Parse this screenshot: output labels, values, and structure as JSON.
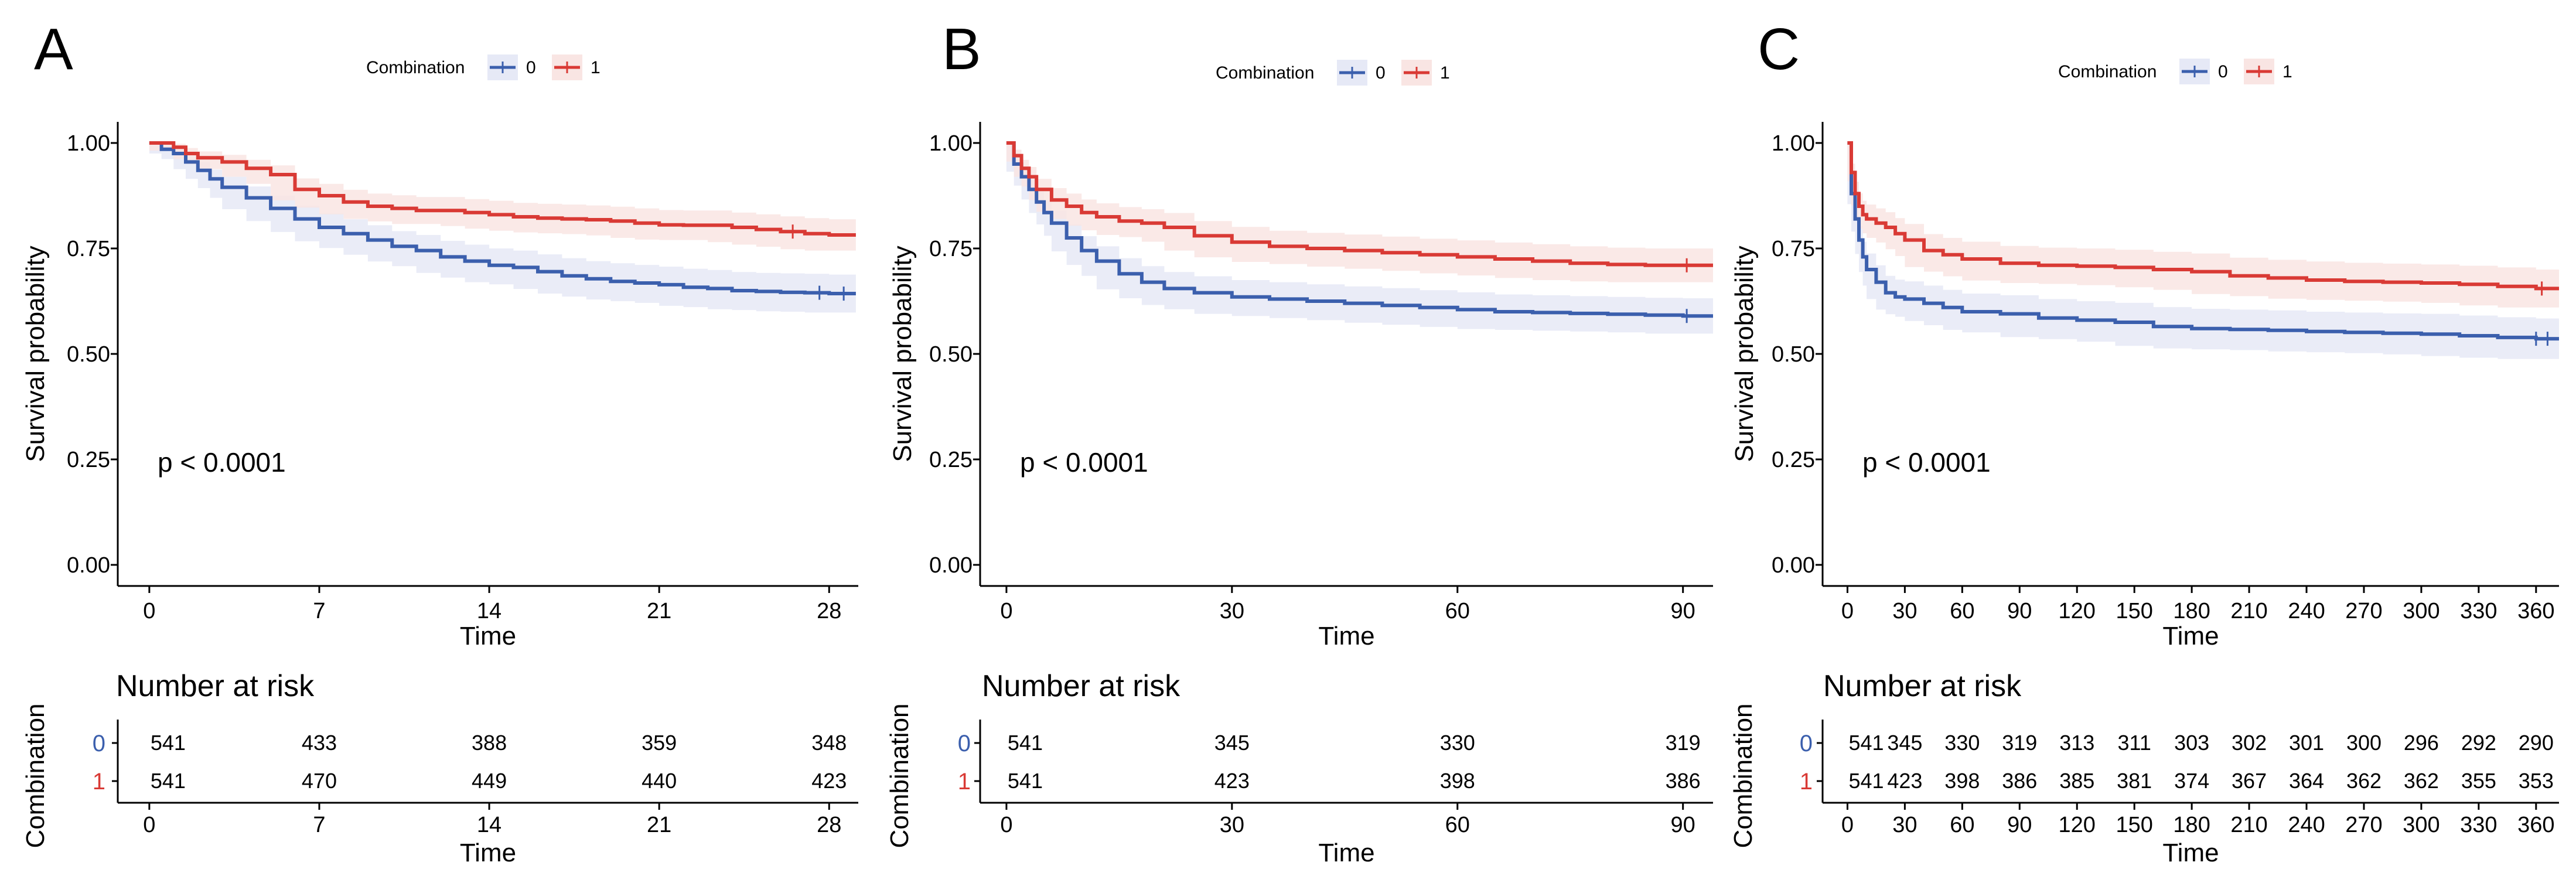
{
  "colors": {
    "group0": "#3b5fad",
    "group1": "#d93a35",
    "band0": "#e6e9f6",
    "band1": "#f9e5e3",
    "axis": "#000000"
  },
  "chart_data": [
    {
      "type": "line",
      "panel_label": "A",
      "legend_title": "Combination",
      "legend_labels": [
        "0",
        "1"
      ],
      "xlabel": "Time",
      "ylabel": "Survival probability",
      "xlim": [
        -1.3,
        29.2
      ],
      "ylim": [
        -0.05,
        1.05
      ],
      "xticks": [
        0,
        7,
        14,
        21,
        28
      ],
      "yticks": [
        0,
        0.25,
        0.5,
        0.75,
        1.0
      ],
      "ytick_labels": [
        "0.00",
        "0.25",
        "0.50",
        "0.75",
        "1.00"
      ],
      "pvalue": "p < 0.0001",
      "series": [
        {
          "name": "0",
          "x": [
            0,
            0.5,
            1,
            1.5,
            2,
            2.5,
            3,
            4,
            5,
            6,
            7,
            8,
            9,
            10,
            11,
            12,
            13,
            14,
            15,
            16,
            17,
            18,
            19,
            20,
            21,
            22,
            23,
            24,
            25,
            26,
            27,
            28,
            29.1
          ],
          "y": [
            1.0,
            0.985,
            0.975,
            0.955,
            0.935,
            0.915,
            0.895,
            0.87,
            0.845,
            0.82,
            0.8,
            0.785,
            0.77,
            0.755,
            0.745,
            0.73,
            0.72,
            0.71,
            0.705,
            0.695,
            0.685,
            0.678,
            0.672,
            0.668,
            0.664,
            0.658,
            0.655,
            0.65,
            0.648,
            0.646,
            0.645,
            0.643,
            0.643
          ],
          "lower": [
            1.0,
            0.975,
            0.962,
            0.938,
            0.915,
            0.893,
            0.87,
            0.843,
            0.815,
            0.789,
            0.767,
            0.751,
            0.735,
            0.719,
            0.708,
            0.692,
            0.681,
            0.67,
            0.665,
            0.654,
            0.643,
            0.636,
            0.629,
            0.625,
            0.621,
            0.614,
            0.611,
            0.606,
            0.604,
            0.601,
            0.6,
            0.598,
            0.598
          ],
          "upper": [
            1.0,
            0.995,
            0.988,
            0.972,
            0.955,
            0.937,
            0.92,
            0.897,
            0.875,
            0.851,
            0.833,
            0.819,
            0.805,
            0.791,
            0.782,
            0.768,
            0.759,
            0.75,
            0.745,
            0.736,
            0.727,
            0.72,
            0.715,
            0.711,
            0.707,
            0.702,
            0.699,
            0.694,
            0.692,
            0.691,
            0.69,
            0.688,
            0.688
          ]
        },
        {
          "name": "1",
          "x": [
            0,
            1,
            1.5,
            2,
            3,
            4,
            5,
            6,
            7,
            8,
            9,
            10,
            11,
            12,
            13,
            14,
            15,
            16,
            17,
            18,
            19,
            20,
            21,
            22,
            23,
            24,
            25,
            26,
            27,
            28,
            29.1
          ],
          "y": [
            1.0,
            0.99,
            0.975,
            0.965,
            0.955,
            0.94,
            0.925,
            0.89,
            0.875,
            0.86,
            0.85,
            0.845,
            0.84,
            0.84,
            0.835,
            0.83,
            0.825,
            0.822,
            0.82,
            0.818,
            0.815,
            0.81,
            0.806,
            0.805,
            0.805,
            0.8,
            0.795,
            0.79,
            0.785,
            0.782,
            0.782
          ],
          "lower": [
            1.0,
            0.982,
            0.962,
            0.95,
            0.938,
            0.92,
            0.903,
            0.864,
            0.847,
            0.831,
            0.82,
            0.814,
            0.808,
            0.808,
            0.803,
            0.797,
            0.792,
            0.788,
            0.786,
            0.784,
            0.781,
            0.775,
            0.771,
            0.77,
            0.77,
            0.765,
            0.759,
            0.754,
            0.748,
            0.745,
            0.745
          ],
          "upper": [
            1.0,
            0.998,
            0.988,
            0.98,
            0.972,
            0.96,
            0.947,
            0.916,
            0.903,
            0.889,
            0.88,
            0.876,
            0.872,
            0.872,
            0.867,
            0.863,
            0.858,
            0.856,
            0.854,
            0.852,
            0.849,
            0.845,
            0.841,
            0.84,
            0.84,
            0.835,
            0.831,
            0.826,
            0.822,
            0.819,
            0.819
          ]
        }
      ],
      "censor_marks": {
        "0": [
          27.6,
          28.6
        ],
        "1": [
          26.5
        ]
      },
      "risk_table": {
        "title": "Number at risk",
        "ylabel": "Combination",
        "xlabel": "Time",
        "row_labels": [
          "0",
          "1"
        ],
        "times": [
          0,
          7,
          14,
          21,
          28
        ],
        "rows": [
          [
            541,
            433,
            388,
            359,
            348
          ],
          [
            541,
            470,
            449,
            440,
            423
          ]
        ]
      }
    },
    {
      "type": "line",
      "panel_label": "B",
      "legend_title": "Combination",
      "legend_labels": [
        "0",
        "1"
      ],
      "xlabel": "Time",
      "ylabel": "Survival probability",
      "xlim": [
        -3.5,
        94
      ],
      "ylim": [
        -0.05,
        1.05
      ],
      "xticks": [
        0,
        30,
        60,
        90
      ],
      "yticks": [
        0,
        0.25,
        0.5,
        0.75,
        1.0
      ],
      "ytick_labels": [
        "0.00",
        "0.25",
        "0.50",
        "0.75",
        "1.00"
      ],
      "pvalue": "p < 0.0001",
      "series": [
        {
          "name": "0",
          "x": [
            0,
            1,
            2,
            3,
            4,
            5,
            6,
            8,
            10,
            12,
            15,
            18,
            21,
            25,
            30,
            35,
            40,
            45,
            50,
            55,
            60,
            65,
            70,
            75,
            80,
            85,
            90,
            94
          ],
          "y": [
            1.0,
            0.95,
            0.92,
            0.89,
            0.86,
            0.835,
            0.81,
            0.775,
            0.745,
            0.72,
            0.69,
            0.67,
            0.655,
            0.645,
            0.635,
            0.63,
            0.625,
            0.62,
            0.615,
            0.61,
            0.605,
            0.6,
            0.598,
            0.596,
            0.594,
            0.592,
            0.59,
            0.59
          ],
          "lower": [
            1.0,
            0.932,
            0.899,
            0.866,
            0.834,
            0.807,
            0.78,
            0.743,
            0.711,
            0.685,
            0.653,
            0.632,
            0.616,
            0.606,
            0.595,
            0.59,
            0.585,
            0.58,
            0.574,
            0.569,
            0.564,
            0.559,
            0.557,
            0.555,
            0.553,
            0.551,
            0.548,
            0.548
          ],
          "upper": [
            1.0,
            0.968,
            0.941,
            0.914,
            0.886,
            0.863,
            0.84,
            0.807,
            0.779,
            0.755,
            0.727,
            0.708,
            0.694,
            0.684,
            0.675,
            0.67,
            0.665,
            0.66,
            0.656,
            0.651,
            0.646,
            0.641,
            0.639,
            0.637,
            0.635,
            0.633,
            0.632,
            0.632
          ]
        },
        {
          "name": "1",
          "x": [
            0,
            1,
            2,
            3,
            4,
            6,
            8,
            10,
            12,
            15,
            18,
            21,
            25,
            30,
            35,
            40,
            45,
            50,
            55,
            60,
            65,
            70,
            75,
            80,
            85,
            90,
            94
          ],
          "y": [
            1.0,
            0.97,
            0.94,
            0.92,
            0.89,
            0.865,
            0.85,
            0.835,
            0.825,
            0.815,
            0.81,
            0.8,
            0.78,
            0.765,
            0.755,
            0.75,
            0.745,
            0.74,
            0.735,
            0.73,
            0.725,
            0.72,
            0.715,
            0.712,
            0.71,
            0.71,
            0.71
          ],
          "lower": [
            1.0,
            0.956,
            0.92,
            0.897,
            0.865,
            0.837,
            0.82,
            0.804,
            0.793,
            0.782,
            0.777,
            0.766,
            0.745,
            0.729,
            0.718,
            0.713,
            0.707,
            0.702,
            0.697,
            0.691,
            0.686,
            0.68,
            0.675,
            0.672,
            0.67,
            0.67,
            0.67
          ],
          "upper": [
            1.0,
            0.984,
            0.96,
            0.943,
            0.915,
            0.893,
            0.88,
            0.866,
            0.857,
            0.848,
            0.843,
            0.834,
            0.815,
            0.801,
            0.792,
            0.787,
            0.783,
            0.778,
            0.773,
            0.769,
            0.764,
            0.76,
            0.755,
            0.752,
            0.75,
            0.75,
            0.75
          ]
        }
      ],
      "censor_marks": {
        "0": [
          90.5
        ],
        "1": [
          90.5
        ]
      },
      "risk_table": {
        "title": "Number at risk",
        "ylabel": "Combination",
        "xlabel": "Time",
        "row_labels": [
          "0",
          "1"
        ],
        "times": [
          0,
          30,
          60,
          90
        ],
        "rows": [
          [
            541,
            345,
            330,
            319
          ],
          [
            541,
            423,
            398,
            386
          ]
        ]
      }
    },
    {
      "type": "line",
      "panel_label": "C",
      "legend_title": "Combination",
      "legend_labels": [
        "0",
        "1"
      ],
      "xlabel": "Time",
      "ylabel": "Survival probability",
      "xlim": [
        -13,
        372
      ],
      "ylim": [
        -0.05,
        1.05
      ],
      "xticks": [
        0,
        30,
        60,
        90,
        120,
        150,
        180,
        210,
        240,
        270,
        300,
        330,
        360
      ],
      "yticks": [
        0,
        0.25,
        0.5,
        0.75,
        1.0
      ],
      "ytick_labels": [
        "0.00",
        "0.25",
        "0.50",
        "0.75",
        "1.00"
      ],
      "pvalue": "p < 0.0001",
      "series": [
        {
          "name": "0",
          "x": [
            0,
            2,
            4,
            6,
            8,
            10,
            15,
            20,
            25,
            30,
            40,
            50,
            60,
            80,
            100,
            120,
            140,
            160,
            180,
            200,
            220,
            240,
            260,
            280,
            300,
            320,
            340,
            360,
            372
          ],
          "y": [
            1.0,
            0.88,
            0.82,
            0.77,
            0.73,
            0.7,
            0.67,
            0.645,
            0.635,
            0.63,
            0.62,
            0.61,
            0.6,
            0.595,
            0.585,
            0.58,
            0.575,
            0.565,
            0.56,
            0.558,
            0.556,
            0.553,
            0.551,
            0.549,
            0.547,
            0.543,
            0.539,
            0.536,
            0.536
          ],
          "lower": [
            1.0,
            0.855,
            0.79,
            0.737,
            0.694,
            0.662,
            0.63,
            0.605,
            0.594,
            0.588,
            0.578,
            0.568,
            0.557,
            0.551,
            0.54,
            0.535,
            0.529,
            0.519,
            0.513,
            0.511,
            0.509,
            0.506,
            0.504,
            0.502,
            0.499,
            0.495,
            0.491,
            0.488,
            0.488
          ],
          "upper": [
            1.0,
            0.905,
            0.85,
            0.803,
            0.766,
            0.738,
            0.71,
            0.685,
            0.676,
            0.672,
            0.662,
            0.652,
            0.643,
            0.639,
            0.63,
            0.625,
            0.621,
            0.611,
            0.607,
            0.605,
            0.603,
            0.6,
            0.598,
            0.596,
            0.595,
            0.591,
            0.587,
            0.584,
            0.584
          ]
        },
        {
          "name": "1",
          "x": [
            0,
            2,
            4,
            6,
            8,
            10,
            15,
            20,
            25,
            30,
            40,
            50,
            60,
            80,
            100,
            120,
            140,
            160,
            180,
            200,
            220,
            240,
            260,
            280,
            300,
            320,
            340,
            360,
            372
          ],
          "y": [
            1.0,
            0.93,
            0.88,
            0.85,
            0.83,
            0.82,
            0.81,
            0.8,
            0.785,
            0.77,
            0.745,
            0.735,
            0.725,
            0.715,
            0.71,
            0.708,
            0.705,
            0.7,
            0.695,
            0.685,
            0.68,
            0.675,
            0.672,
            0.67,
            0.668,
            0.665,
            0.66,
            0.655,
            0.655
          ],
          "lower": [
            1.0,
            0.909,
            0.852,
            0.819,
            0.797,
            0.786,
            0.775,
            0.764,
            0.748,
            0.732,
            0.706,
            0.695,
            0.684,
            0.674,
            0.668,
            0.666,
            0.663,
            0.658,
            0.652,
            0.642,
            0.637,
            0.631,
            0.628,
            0.626,
            0.624,
            0.621,
            0.615,
            0.61,
            0.61
          ],
          "upper": [
            1.0,
            0.951,
            0.908,
            0.881,
            0.863,
            0.854,
            0.845,
            0.836,
            0.822,
            0.808,
            0.784,
            0.775,
            0.766,
            0.756,
            0.752,
            0.75,
            0.747,
            0.742,
            0.738,
            0.728,
            0.723,
            0.719,
            0.716,
            0.714,
            0.712,
            0.709,
            0.705,
            0.7,
            0.7
          ]
        }
      ],
      "censor_marks": {
        "0": [
          360,
          366
        ],
        "1": [
          363
        ]
      },
      "risk_table": {
        "title": "Number at risk",
        "ylabel": "Combination",
        "xlabel": "Time",
        "row_labels": [
          "0",
          "1"
        ],
        "times": [
          0,
          30,
          60,
          90,
          120,
          150,
          180,
          210,
          240,
          270,
          300,
          330,
          360
        ],
        "rows": [
          [
            541,
            345,
            330,
            319,
            313,
            311,
            303,
            302,
            301,
            300,
            296,
            292,
            290
          ],
          [
            541,
            423,
            398,
            386,
            385,
            381,
            374,
            367,
            364,
            362,
            362,
            355,
            353
          ]
        ]
      }
    }
  ]
}
